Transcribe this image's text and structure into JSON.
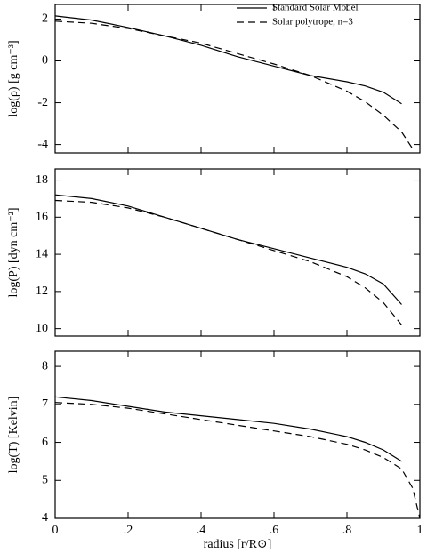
{
  "chart_data": [
    {
      "type": "line",
      "ylabel": "log(ρ) [g cm⁻³]",
      "xlim": [
        0,
        1
      ],
      "ylim": [
        -4.4,
        2.7
      ],
      "xticks": [
        0,
        0.2,
        0.4,
        0.6,
        0.8,
        1
      ],
      "yticks": [
        2,
        0,
        -2,
        -4
      ],
      "legend": "upper right",
      "series": [
        {
          "name": "Standard Solar Model",
          "color": "#000000",
          "dash": false,
          "x": [
            0,
            0.1,
            0.2,
            0.3,
            0.4,
            0.5,
            0.6,
            0.7,
            0.8,
            0.85,
            0.9,
            0.95
          ],
          "values": [
            2.15,
            1.95,
            1.6,
            1.2,
            0.75,
            0.2,
            -0.25,
            -0.7,
            -1.0,
            -1.2,
            -1.5,
            -2.05
          ]
        },
        {
          "name": "Solar polytrope, n=3",
          "color": "#000000",
          "dash": true,
          "x": [
            0,
            0.1,
            0.2,
            0.3,
            0.4,
            0.5,
            0.6,
            0.7,
            0.8,
            0.85,
            0.9,
            0.95,
            0.98
          ],
          "values": [
            1.9,
            1.8,
            1.55,
            1.2,
            0.85,
            0.35,
            -0.15,
            -0.7,
            -1.45,
            -1.95,
            -2.6,
            -3.4,
            -4.2
          ]
        }
      ]
    },
    {
      "type": "line",
      "ylabel": "log(P) [dyn cm⁻²]",
      "xlim": [
        0,
        1
      ],
      "ylim": [
        9.6,
        18.6
      ],
      "xticks": [
        0,
        0.2,
        0.4,
        0.6,
        0.8,
        1
      ],
      "yticks": [
        18,
        16,
        14,
        12,
        10
      ],
      "series": [
        {
          "color": "#000000",
          "dash": false,
          "x": [
            0,
            0.1,
            0.2,
            0.3,
            0.4,
            0.5,
            0.6,
            0.7,
            0.8,
            0.85,
            0.9,
            0.95
          ],
          "values": [
            17.2,
            17.0,
            16.6,
            16.0,
            15.4,
            14.8,
            14.3,
            13.8,
            13.3,
            12.95,
            12.4,
            11.3
          ]
        },
        {
          "color": "#000000",
          "dash": true,
          "x": [
            0,
            0.1,
            0.2,
            0.3,
            0.4,
            0.5,
            0.6,
            0.7,
            0.8,
            0.85,
            0.9,
            0.95
          ],
          "values": [
            16.9,
            16.8,
            16.5,
            16.0,
            15.4,
            14.8,
            14.2,
            13.6,
            12.8,
            12.2,
            11.4,
            10.2
          ]
        }
      ]
    },
    {
      "type": "line",
      "ylabel": "log(T) [Kelvin]",
      "xlabel": "radius [r/R⊙]",
      "xlim": [
        0,
        1
      ],
      "ylim": [
        4,
        8.4
      ],
      "xticks": [
        0,
        {
          "value": 0.2,
          "label": ".2"
        },
        {
          "value": 0.4,
          "label": ".4"
        },
        {
          "value": 0.6,
          "label": ".6"
        },
        {
          "value": 0.8,
          "label": ".8"
        },
        1
      ],
      "yticks": [
        8,
        7,
        6,
        5,
        4
      ],
      "series": [
        {
          "color": "#000000",
          "dash": false,
          "x": [
            0,
            0.1,
            0.2,
            0.3,
            0.4,
            0.5,
            0.6,
            0.7,
            0.8,
            0.85,
            0.9,
            0.95
          ],
          "values": [
            7.2,
            7.1,
            6.95,
            6.8,
            6.7,
            6.6,
            6.5,
            6.35,
            6.15,
            6.0,
            5.8,
            5.5
          ]
        },
        {
          "color": "#000000",
          "dash": true,
          "x": [
            0,
            0.1,
            0.2,
            0.3,
            0.4,
            0.5,
            0.6,
            0.7,
            0.8,
            0.85,
            0.9,
            0.95,
            0.98,
            0.99,
            1
          ],
          "values": [
            7.05,
            7.0,
            6.9,
            6.75,
            6.6,
            6.45,
            6.3,
            6.15,
            5.95,
            5.8,
            5.6,
            5.3,
            4.8,
            4.4,
            4.0
          ]
        }
      ]
    }
  ]
}
